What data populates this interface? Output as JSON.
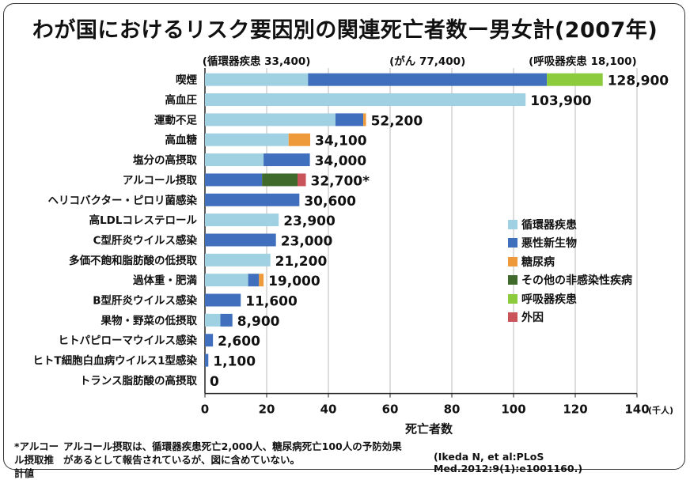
{
  "title": "わが国におけるリスク要因別の関連死亡者数ー男女計(2007年)",
  "chart_data": {
    "type": "bar",
    "orientation": "horizontal",
    "stacked": true,
    "xlabel": "死亡者数",
    "x_unit": "(千人)",
    "xlim": [
      0,
      140
    ],
    "xticks": [
      0,
      20,
      40,
      60,
      80,
      100,
      120,
      140
    ],
    "colors": {
      "循環器疾患": "#9fd1e3",
      "悪性新生物": "#3f6fbd",
      "糖尿病": "#ee9a3a",
      "その他の非感染性疾病": "#3f6a2c",
      "呼吸器疾患": "#8ccc3c",
      "外因": "#c9545a"
    },
    "legend": [
      "循環器疾患",
      "悪性新生物",
      "糖尿病",
      "その他の非感染性疾病",
      "呼吸器疾患",
      "外因"
    ],
    "legend_position": "right",
    "top_annotations": [
      "(循環器疾患 33,400)",
      "(がん 77,400)",
      "(呼吸器疾患 18,100)"
    ],
    "categories": [
      {
        "label": "喫煙",
        "total": "128,900",
        "segments": [
          {
            "cat": "循環器疾患",
            "value": 33.4
          },
          {
            "cat": "悪性新生物",
            "value": 77.4
          },
          {
            "cat": "呼吸器疾患",
            "value": 18.1
          }
        ]
      },
      {
        "label": "高血圧",
        "total": "103,900",
        "segments": [
          {
            "cat": "循環器疾患",
            "value": 103.9
          }
        ]
      },
      {
        "label": "運動不足",
        "total": "52,200",
        "segments": [
          {
            "cat": "循環器疾患",
            "value": 42.3
          },
          {
            "cat": "悪性新生物",
            "value": 9.0
          },
          {
            "cat": "糖尿病",
            "value": 0.9
          }
        ]
      },
      {
        "label": "高血糖",
        "total": "34,100",
        "segments": [
          {
            "cat": "循環器疾患",
            "value": 27.1
          },
          {
            "cat": "糖尿病",
            "value": 7.0
          }
        ]
      },
      {
        "label": "塩分の高摂取",
        "total": "34,000",
        "segments": [
          {
            "cat": "循環器疾患",
            "value": 19.0
          },
          {
            "cat": "悪性新生物",
            "value": 15.0
          }
        ]
      },
      {
        "label": "アルコール摂取",
        "total": "32,700*",
        "segments": [
          {
            "cat": "悪性新生物",
            "value": 18.5
          },
          {
            "cat": "その他の非感染性疾病",
            "value": 11.5
          },
          {
            "cat": "外因",
            "value": 2.7
          }
        ]
      },
      {
        "label": "ヘリコバクター・ピロリ菌感染",
        "total": "30,600",
        "segments": [
          {
            "cat": "悪性新生物",
            "value": 30.6
          }
        ]
      },
      {
        "label": "高LDLコレステロール",
        "total": "23,900",
        "segments": [
          {
            "cat": "循環器疾患",
            "value": 23.9
          }
        ]
      },
      {
        "label": "C型肝炎ウイルス感染",
        "total": "23,000",
        "segments": [
          {
            "cat": "悪性新生物",
            "value": 23.0
          }
        ]
      },
      {
        "label": "多価不飽和脂肪酸の低摂取",
        "total": "21,200",
        "segments": [
          {
            "cat": "循環器疾患",
            "value": 21.2
          }
        ]
      },
      {
        "label": "過体重・肥満",
        "total": "19,000",
        "segments": [
          {
            "cat": "循環器疾患",
            "value": 14.0
          },
          {
            "cat": "悪性新生物",
            "value": 3.5
          },
          {
            "cat": "糖尿病",
            "value": 1.5
          }
        ]
      },
      {
        "label": "B型肝炎ウイルス感染",
        "total": "11,600",
        "segments": [
          {
            "cat": "悪性新生物",
            "value": 11.6
          }
        ]
      },
      {
        "label": "果物・野菜の低摂取",
        "total": "8,900",
        "segments": [
          {
            "cat": "循環器疾患",
            "value": 5.0
          },
          {
            "cat": "悪性新生物",
            "value": 3.9
          }
        ]
      },
      {
        "label": "ヒトパピローマウイルス感染",
        "total": "2,600",
        "segments": [
          {
            "cat": "悪性新生物",
            "value": 2.6
          }
        ]
      },
      {
        "label": "ヒトT細胞白血病ウイルス1型感染",
        "total": "1,100",
        "segments": [
          {
            "cat": "悪性新生物",
            "value": 1.1
          }
        ]
      },
      {
        "label": "トランス脂肪酸の高摂取",
        "total": "0",
        "segments": []
      }
    ]
  },
  "footnote": {
    "mark": "*アルコール摂取推計値",
    "text": "アルコール摂取は、循環器疾患死亡2,000人、糖尿病死亡100人の予防効果があるとして報告されているが、図に含めていない。"
  },
  "citation": "(Ikeda N, et al:PLoS Med.2012:9(1):e1001160.)"
}
